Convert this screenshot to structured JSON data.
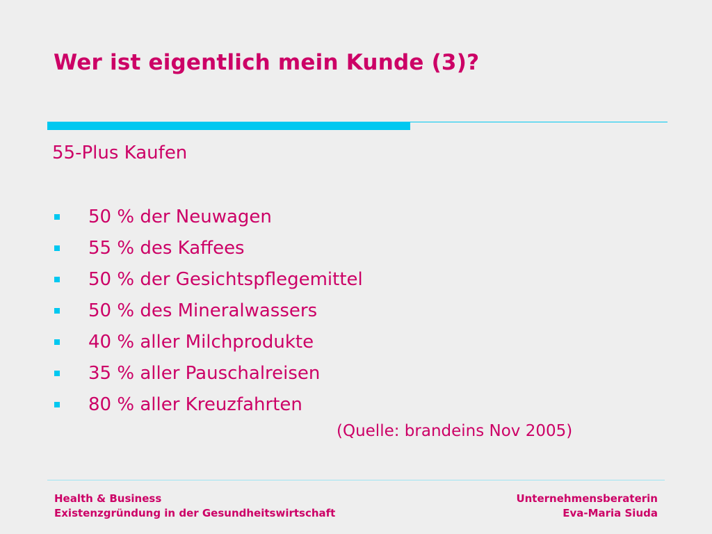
{
  "slide": {
    "title": "Wer ist eigentlich mein Kunde (3)?",
    "subtitle": "55-Plus Kaufen",
    "bullets": [
      "50 % der Neuwagen",
      "55 % des Kaffees",
      "50 % der Gesichtspflegemittel",
      "50 % des Mineralwassers",
      "40 % aller Milchprodukte",
      "35 % aller Pauschalreisen",
      "80 % aller Kreuzfahrten"
    ],
    "source": "(Quelle: brandeins Nov 2005)"
  },
  "footer": {
    "left_line1": "Health & Business",
    "left_line2": "Existenzgründung in der Gesundheitswirtschaft",
    "right_line1": "Unternehmensberaterin",
    "right_line2": "Eva-Maria Siuda"
  },
  "colors": {
    "accent_text": "#cc0066",
    "accent_rule": "#00c8f0",
    "background": "#eeeeee"
  }
}
